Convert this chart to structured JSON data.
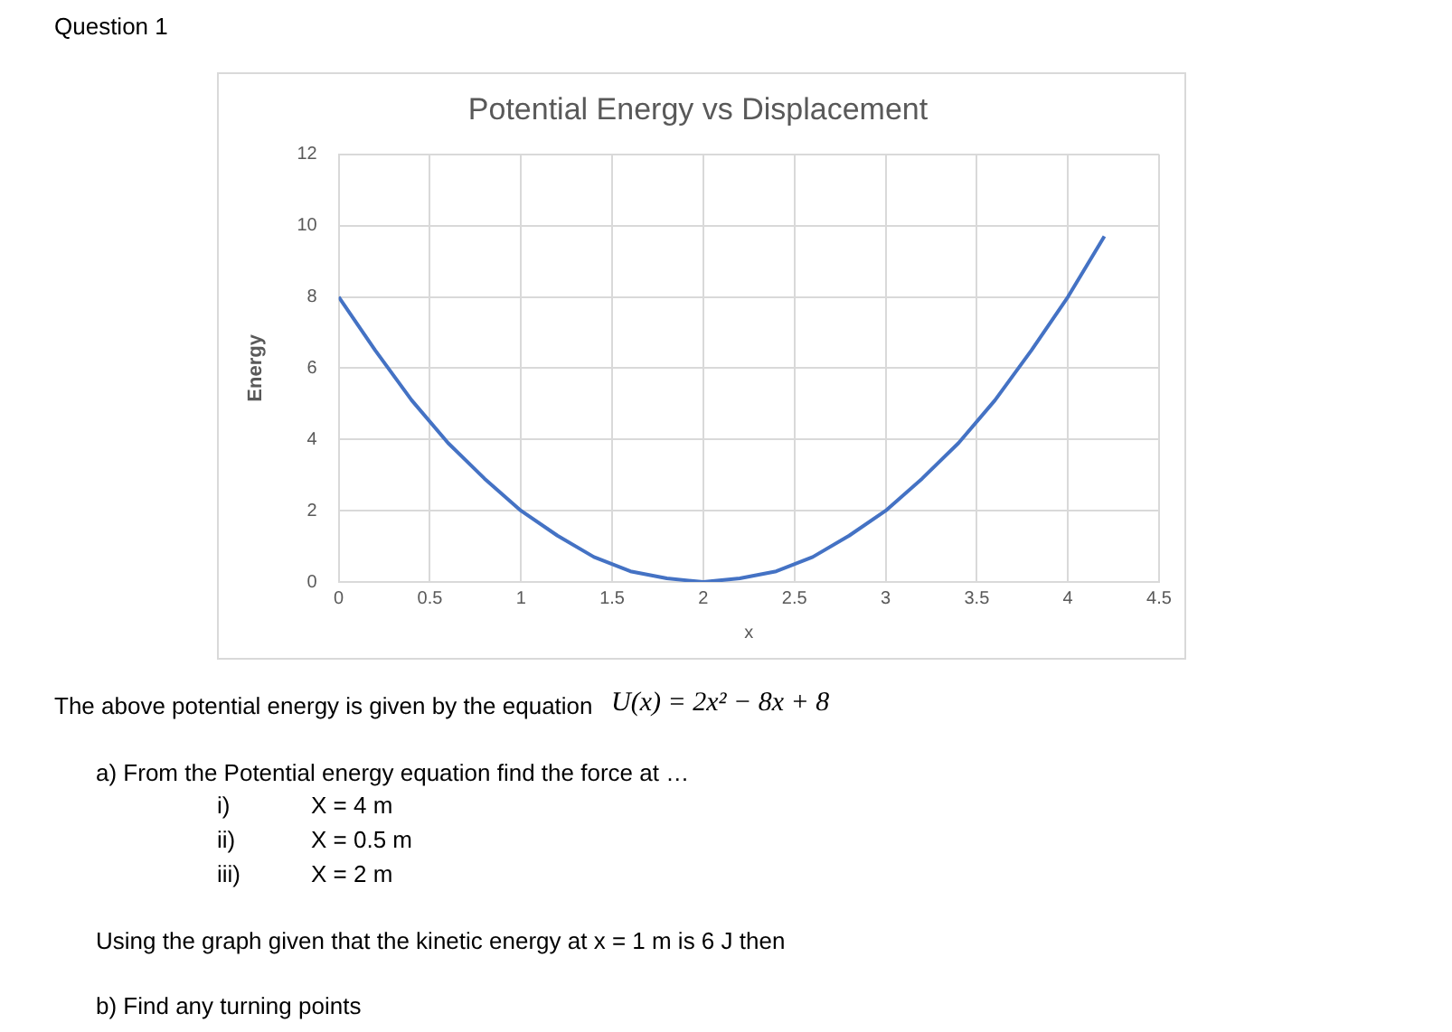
{
  "chart_data": {
    "type": "line",
    "title": "Potential Energy vs Displacement",
    "xlabel": "x",
    "ylabel": "Energy",
    "x": [
      0,
      0.2,
      0.4,
      0.6,
      0.8,
      1,
      1.2,
      1.4,
      1.6,
      1.8,
      2,
      2.2,
      2.4,
      2.6,
      2.8,
      3,
      3.2,
      3.4,
      3.6,
      3.8,
      4,
      4.2
    ],
    "series": [
      {
        "color": "#4472c4",
        "values": [
          8,
          6.5,
          5.1,
          3.9,
          2.9,
          2,
          1.3,
          0.7,
          0.3,
          0.1,
          0,
          0.1,
          0.3,
          0.7,
          1.3,
          2,
          2.9,
          3.9,
          5.1,
          6.5,
          8,
          9.7
        ]
      }
    ],
    "xlim": [
      0,
      4.5
    ],
    "xticks": [
      0,
      0.5,
      1,
      1.5,
      2,
      2.5,
      3,
      3.5,
      4,
      4.5
    ],
    "ylim": [
      0,
      12
    ],
    "yticks": [
      0,
      2,
      4,
      6,
      8,
      10,
      12
    ],
    "grid": true,
    "legend": false,
    "marker": "none",
    "line_style": "solid",
    "annotations": [
      "Question 1",
      "The above potential energy is given by the equation",
      "U(x) = 2x² − 8x + 8",
      "a)  From the Potential energy equation find the force at …",
      "i)",
      "X = 4 m",
      "ii)",
      "X = 0.5 m",
      "iii)",
      "X = 2 m",
      "Using the graph given that the kinetic energy at x = 1 m is 6 J then",
      "b)  Find any turning points"
    ]
  }
}
